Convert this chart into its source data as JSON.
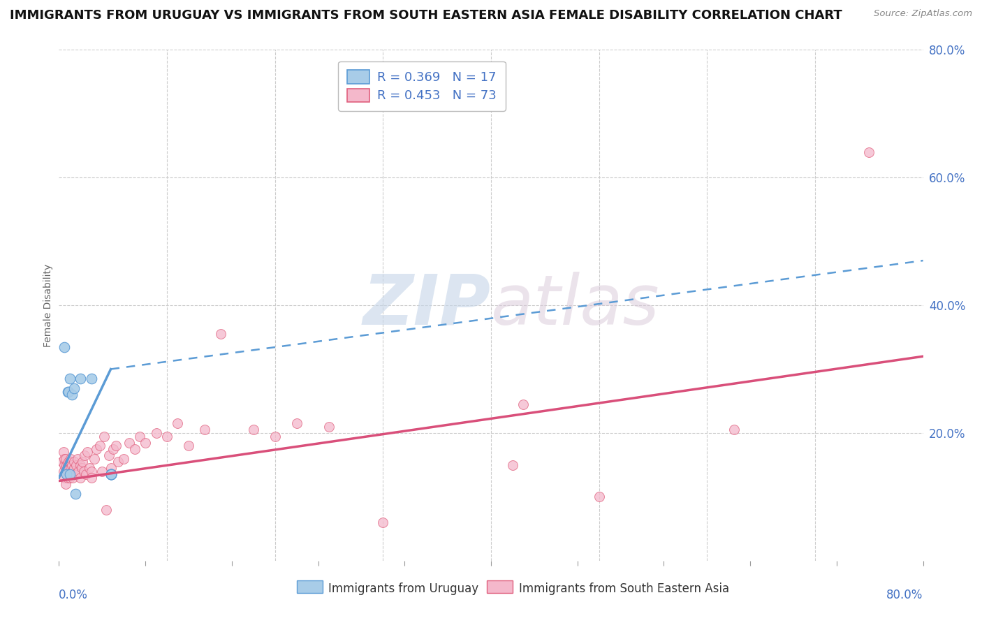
{
  "title": "IMMIGRANTS FROM URUGUAY VS IMMIGRANTS FROM SOUTH EASTERN ASIA FEMALE DISABILITY CORRELATION CHART",
  "source": "Source: ZipAtlas.com",
  "legend_blue_label": "R = 0.369   N = 17",
  "legend_pink_label": "R = 0.453   N = 73",
  "ylabel": "Female Disability",
  "ylabel_right_vals": [
    0.2,
    0.4,
    0.6,
    0.8
  ],
  "blue_color": "#a8cce8",
  "blue_edge_color": "#5b9bd5",
  "pink_color": "#f4b8cb",
  "pink_edge_color": "#e0607e",
  "blue_line_color": "#5b9bd5",
  "pink_line_color": "#d94f7a",
  "grid_color": "#cccccc",
  "background": "#ffffff",
  "xlim": [
    0.0,
    0.8
  ],
  "ylim": [
    0.0,
    0.8
  ],
  "title_fontsize": 13,
  "legend_fontsize": 13,
  "blue_scatter_x": [
    0.005,
    0.007,
    0.008,
    0.009,
    0.01,
    0.01,
    0.012,
    0.014,
    0.015,
    0.02,
    0.03,
    0.048,
    0.048,
    0.048,
    0.048,
    0.048,
    0.048
  ],
  "blue_scatter_y": [
    0.335,
    0.135,
    0.265,
    0.265,
    0.285,
    0.135,
    0.26,
    0.27,
    0.105,
    0.285,
    0.285,
    0.135,
    0.135,
    0.135,
    0.135,
    0.135,
    0.135
  ],
  "pink_scatter_x": [
    0.003,
    0.004,
    0.004,
    0.005,
    0.005,
    0.005,
    0.006,
    0.006,
    0.006,
    0.007,
    0.007,
    0.008,
    0.008,
    0.008,
    0.009,
    0.009,
    0.01,
    0.01,
    0.01,
    0.011,
    0.011,
    0.012,
    0.012,
    0.013,
    0.014,
    0.014,
    0.015,
    0.016,
    0.017,
    0.018,
    0.02,
    0.02,
    0.021,
    0.022,
    0.023,
    0.024,
    0.025,
    0.026,
    0.028,
    0.03,
    0.03,
    0.033,
    0.035,
    0.038,
    0.04,
    0.042,
    0.044,
    0.046,
    0.048,
    0.05,
    0.053,
    0.055,
    0.06,
    0.065,
    0.07,
    0.075,
    0.08,
    0.09,
    0.1,
    0.11,
    0.12,
    0.135,
    0.15,
    0.18,
    0.2,
    0.22,
    0.25,
    0.3,
    0.42,
    0.43,
    0.5,
    0.625,
    0.75
  ],
  "pink_scatter_y": [
    0.155,
    0.14,
    0.17,
    0.13,
    0.15,
    0.16,
    0.145,
    0.16,
    0.12,
    0.135,
    0.15,
    0.14,
    0.13,
    0.15,
    0.145,
    0.155,
    0.14,
    0.13,
    0.155,
    0.145,
    0.16,
    0.14,
    0.15,
    0.13,
    0.145,
    0.155,
    0.135,
    0.15,
    0.16,
    0.14,
    0.13,
    0.15,
    0.145,
    0.155,
    0.14,
    0.165,
    0.135,
    0.17,
    0.145,
    0.14,
    0.13,
    0.16,
    0.175,
    0.18,
    0.14,
    0.195,
    0.08,
    0.165,
    0.145,
    0.175,
    0.18,
    0.155,
    0.16,
    0.185,
    0.175,
    0.195,
    0.185,
    0.2,
    0.195,
    0.215,
    0.18,
    0.205,
    0.355,
    0.205,
    0.195,
    0.215,
    0.21,
    0.06,
    0.15,
    0.245,
    0.1,
    0.205,
    0.64
  ],
  "blue_trend_start_x": 0.0,
  "blue_trend_solid_end_x": 0.048,
  "blue_trend_dashed_end_x": 0.8,
  "blue_trend_y_at_0": 0.13,
  "blue_trend_y_at_solid_end": 0.3,
  "blue_trend_y_at_dashed_end": 0.47,
  "pink_trend_start_x": 0.0,
  "pink_trend_end_x": 0.8,
  "pink_trend_y_at_0": 0.125,
  "pink_trend_y_at_end": 0.32
}
